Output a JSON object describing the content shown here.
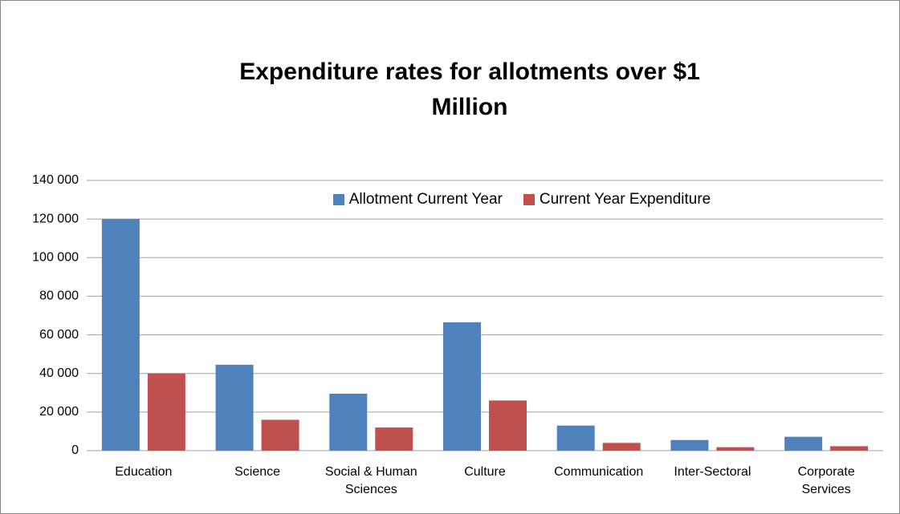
{
  "chart_data": {
    "type": "bar",
    "title": "Expenditure rates for allotments over $1 Million",
    "categories": [
      "Education",
      "Science",
      "Social & Human Sciences",
      "Culture",
      "Communication",
      "Inter-Sectoral",
      "Corporate Services"
    ],
    "series": [
      {
        "name": "Allotment Current Year",
        "color": "#4f81bd",
        "values": [
          120000,
          44500,
          29500,
          66500,
          13000,
          5500,
          7200
        ]
      },
      {
        "name": "Current Year Expenditure",
        "color": "#c0504d",
        "values": [
          40000,
          16000,
          12000,
          26000,
          4000,
          1800,
          2300
        ]
      }
    ],
    "ylim": [
      0,
      140000
    ],
    "yticks": [
      0,
      {
        "value": 20000,
        "label": "20 000"
      },
      {
        "value": 40000,
        "label": "40 000"
      },
      {
        "value": 60000,
        "label": "60 000"
      },
      {
        "value": 80000,
        "label": "80 000"
      },
      {
        "value": 100000,
        "label": "100 000"
      },
      {
        "value": 120000,
        "label": "120 000"
      },
      {
        "value": 140000,
        "label": "140 000"
      }
    ],
    "grid": true,
    "legend": "top"
  }
}
